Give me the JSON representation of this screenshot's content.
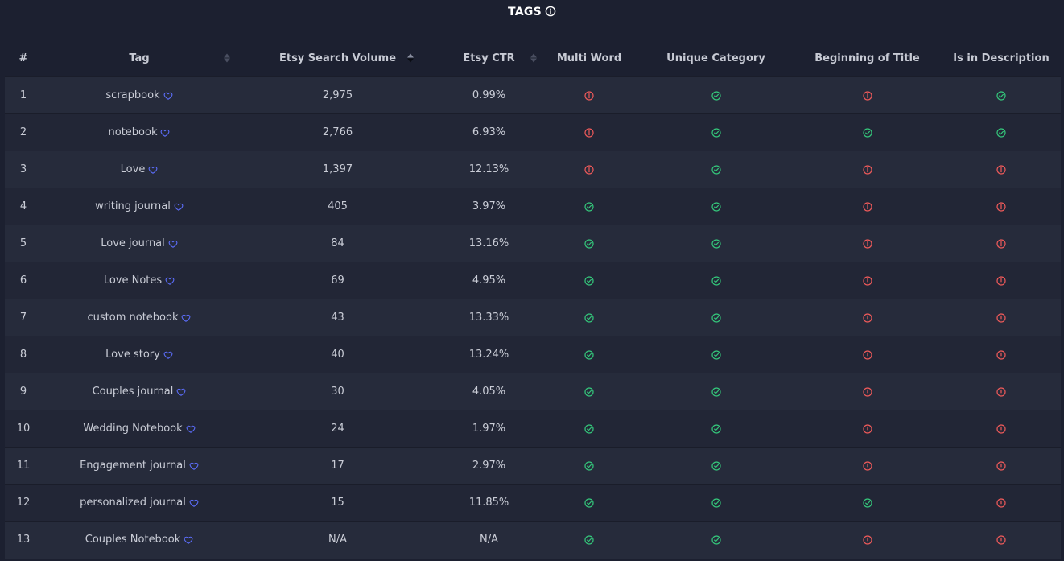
{
  "header": {
    "title": "TAGS",
    "info_icon": "info-icon"
  },
  "columns": {
    "num": "#",
    "tag": "Tag",
    "volume": "Etsy Search Volume",
    "ctr": "Etsy CTR",
    "multi": "Multi Word",
    "unique": "Unique Category",
    "begin": "Beginning of Title",
    "desc": "Is in Description"
  },
  "colors": {
    "ok": "#34c77b",
    "bad": "#ef5a5a",
    "heart": "#5b6cf7"
  },
  "rows": [
    {
      "num": "1",
      "tag": "scrapbook",
      "volume": "2,975",
      "ctr": "0.99%",
      "multi": "bad",
      "unique": "ok",
      "begin": "bad",
      "desc": "ok"
    },
    {
      "num": "2",
      "tag": "notebook",
      "volume": "2,766",
      "ctr": "6.93%",
      "multi": "bad",
      "unique": "ok",
      "begin": "ok",
      "desc": "ok"
    },
    {
      "num": "3",
      "tag": "Love",
      "volume": "1,397",
      "ctr": "12.13%",
      "multi": "bad",
      "unique": "ok",
      "begin": "bad",
      "desc": "bad"
    },
    {
      "num": "4",
      "tag": "writing journal",
      "volume": "405",
      "ctr": "3.97%",
      "multi": "ok",
      "unique": "ok",
      "begin": "bad",
      "desc": "bad"
    },
    {
      "num": "5",
      "tag": "Love journal",
      "volume": "84",
      "ctr": "13.16%",
      "multi": "ok",
      "unique": "ok",
      "begin": "bad",
      "desc": "bad"
    },
    {
      "num": "6",
      "tag": "Love Notes",
      "volume": "69",
      "ctr": "4.95%",
      "multi": "ok",
      "unique": "ok",
      "begin": "bad",
      "desc": "bad"
    },
    {
      "num": "7",
      "tag": "custom notebook",
      "volume": "43",
      "ctr": "13.33%",
      "multi": "ok",
      "unique": "ok",
      "begin": "bad",
      "desc": "bad"
    },
    {
      "num": "8",
      "tag": "Love story",
      "volume": "40",
      "ctr": "13.24%",
      "multi": "ok",
      "unique": "ok",
      "begin": "bad",
      "desc": "bad"
    },
    {
      "num": "9",
      "tag": "Couples journal",
      "volume": "30",
      "ctr": "4.05%",
      "multi": "ok",
      "unique": "ok",
      "begin": "bad",
      "desc": "bad"
    },
    {
      "num": "10",
      "tag": "Wedding Notebook",
      "volume": "24",
      "ctr": "1.97%",
      "multi": "ok",
      "unique": "ok",
      "begin": "bad",
      "desc": "bad"
    },
    {
      "num": "11",
      "tag": "Engagement journal",
      "volume": "17",
      "ctr": "2.97%",
      "multi": "ok",
      "unique": "ok",
      "begin": "bad",
      "desc": "bad"
    },
    {
      "num": "12",
      "tag": "personalized journal",
      "volume": "15",
      "ctr": "11.85%",
      "multi": "ok",
      "unique": "ok",
      "begin": "ok",
      "desc": "bad"
    },
    {
      "num": "13",
      "tag": "Couples Notebook",
      "volume": "N/A",
      "ctr": "N/A",
      "multi": "ok",
      "unique": "ok",
      "begin": "bad",
      "desc": "bad"
    }
  ]
}
